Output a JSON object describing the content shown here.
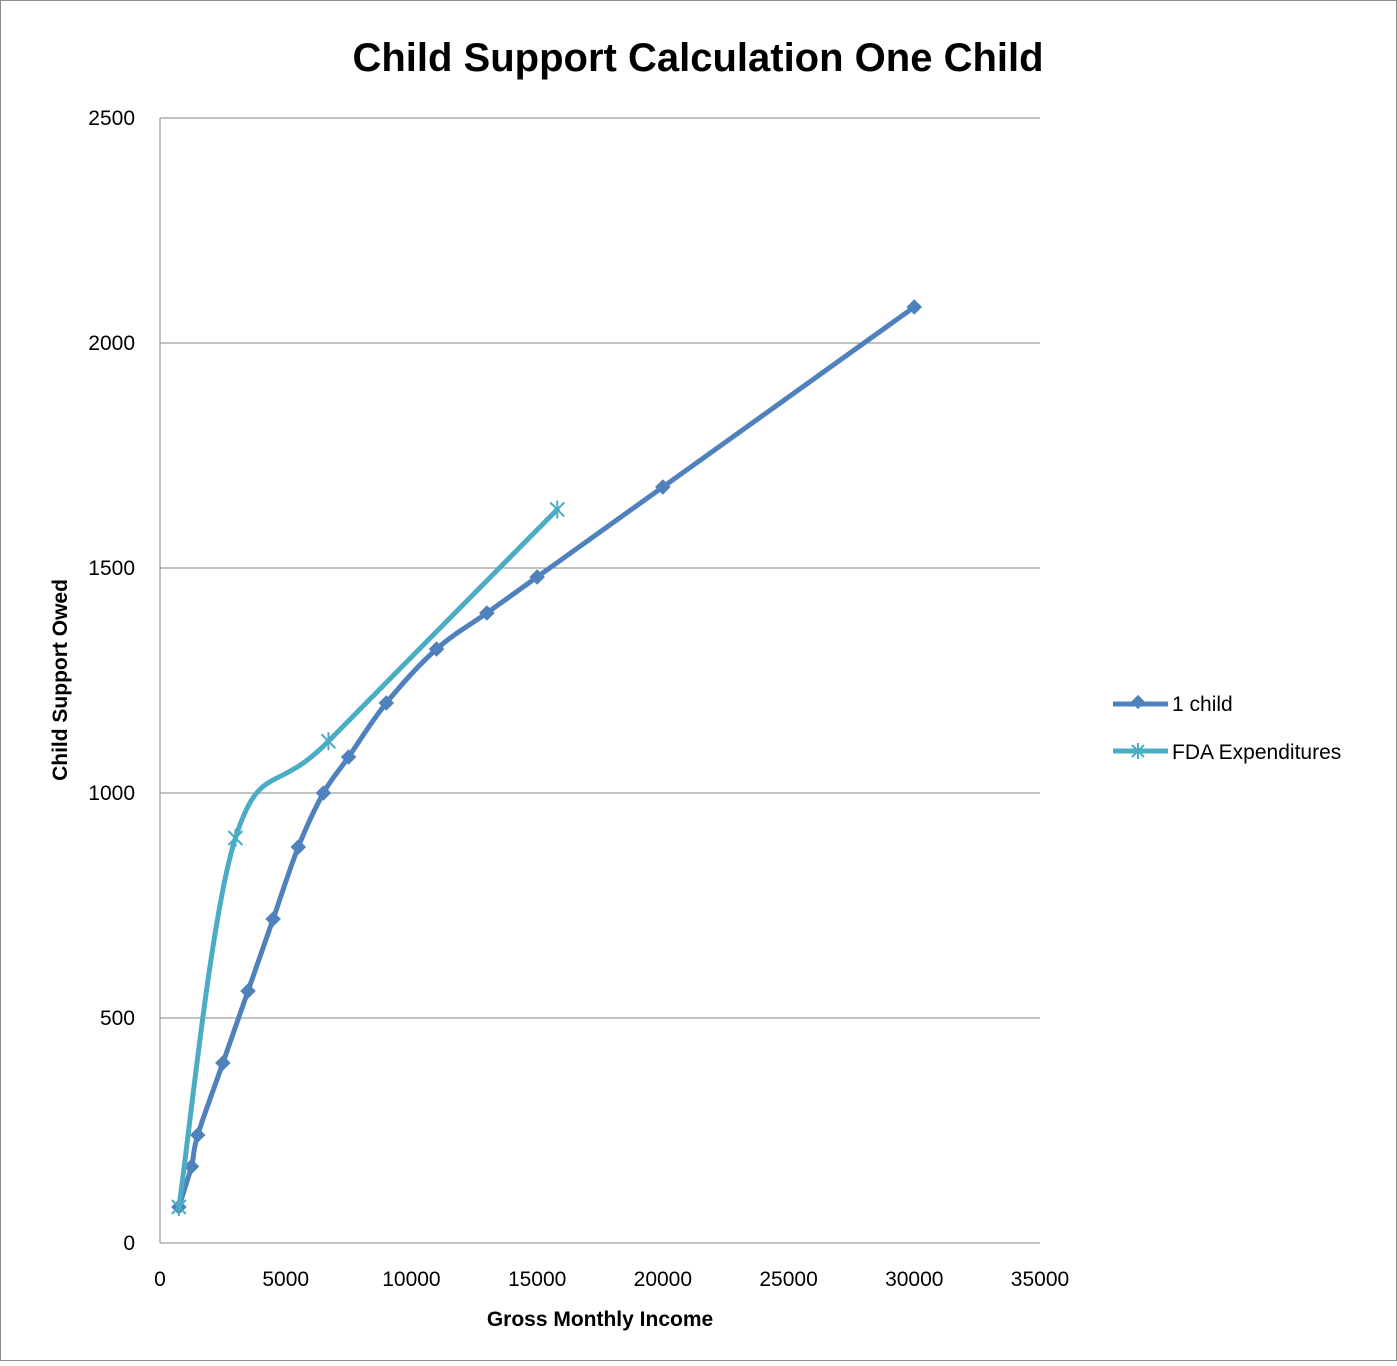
{
  "chart_data": {
    "type": "scatter",
    "title": "Child Support Calculation One Child",
    "xlabel": "Gross Monthly Income",
    "ylabel": "Child Support Owed",
    "xlim": [
      0,
      35000
    ],
    "ylim": [
      0,
      2500
    ],
    "xticks": [
      "0",
      "5000",
      "10000",
      "15000",
      "20000",
      "25000",
      "30000",
      "35000"
    ],
    "yticks": [
      "0",
      "500",
      "1000",
      "1500",
      "2000",
      "2500"
    ],
    "grid": "horizontal",
    "legend_position": "right",
    "smoothed_lines": true,
    "series": [
      {
        "name": "1 child",
        "color": "#4f81bd",
        "marker": "diamond",
        "points": [
          [
            750,
            80
          ],
          [
            1250,
            170
          ],
          [
            1500,
            240
          ],
          [
            2500,
            400
          ],
          [
            3500,
            560
          ],
          [
            4500,
            720
          ],
          [
            5500,
            880
          ],
          [
            6500,
            1000
          ],
          [
            7500,
            1080
          ],
          [
            9000,
            1200
          ],
          [
            11000,
            1320
          ],
          [
            13000,
            1400
          ],
          [
            15000,
            1480
          ],
          [
            20000,
            1680
          ],
          [
            30000,
            2080
          ]
        ]
      },
      {
        "name": "FDA Expenditures",
        "color": "#4bacc6",
        "marker": "star",
        "points": [
          [
            750,
            80
          ],
          [
            3000,
            900
          ],
          [
            6700,
            1115
          ],
          [
            15800,
            1630
          ]
        ]
      }
    ]
  }
}
